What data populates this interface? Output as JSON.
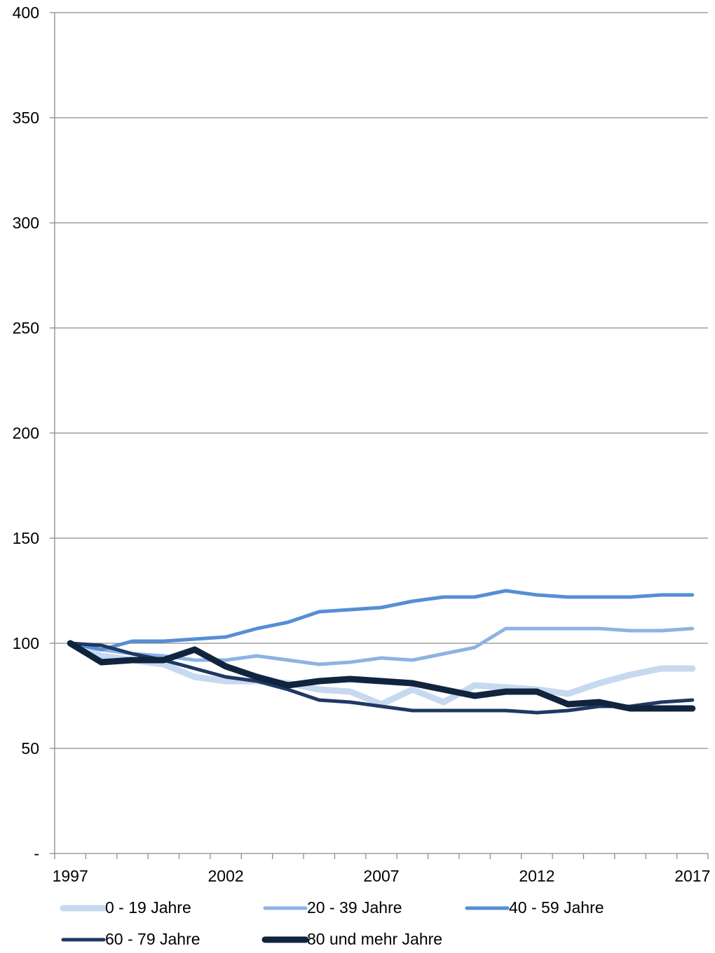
{
  "chart_data": {
    "type": "line",
    "title": "",
    "xlabel": "",
    "ylabel": "",
    "x": [
      1997,
      1998,
      1999,
      2000,
      2001,
      2002,
      2003,
      2004,
      2005,
      2006,
      2007,
      2008,
      2009,
      2010,
      2011,
      2012,
      2013,
      2014,
      2015,
      2016,
      2017
    ],
    "xticks": [
      "1997",
      "2002",
      "2007",
      "2012",
      "2017"
    ],
    "xlim": [
      1996.5,
      2017.5
    ],
    "ylim": [
      0,
      400
    ],
    "yticks": [
      "-",
      "50",
      "100",
      "150",
      "200",
      "250",
      "300",
      "350",
      "400"
    ],
    "grid": true,
    "legend_position": "bottom",
    "series": [
      {
        "name": "0 - 19 Jahre",
        "color": "#c6d9f0",
        "values": [
          100,
          94,
          92,
          90,
          84,
          82,
          82,
          81,
          78,
          77,
          71,
          78,
          72,
          80,
          79,
          78,
          76,
          81,
          85,
          88,
          88
        ]
      },
      {
        "name": "20 - 39 Jahre",
        "color": "#8db3e2",
        "values": [
          100,
          97,
          95,
          94,
          92,
          92,
          94,
          92,
          90,
          91,
          93,
          92,
          95,
          98,
          107,
          107,
          107,
          107,
          106,
          106,
          107
        ]
      },
      {
        "name": "40 - 59 Jahre",
        "color": "#558ed5",
        "values": [
          100,
          97,
          101,
          101,
          102,
          103,
          107,
          110,
          115,
          116,
          117,
          120,
          122,
          122,
          125,
          123,
          122,
          122,
          122,
          123,
          123
        ]
      },
      {
        "name": "60 - 79 Jahre",
        "color": "#1f3864",
        "values": [
          100,
          99,
          95,
          92,
          88,
          84,
          82,
          78,
          73,
          72,
          70,
          68,
          68,
          68,
          68,
          67,
          68,
          70,
          70,
          72,
          73
        ]
      },
      {
        "name": "80 und mehr Jahre",
        "color": "#10243e",
        "values": [
          100,
          91,
          92,
          92,
          97,
          89,
          84,
          80,
          82,
          83,
          82,
          81,
          78,
          75,
          77,
          77,
          71,
          72,
          69,
          69,
          69
        ]
      }
    ]
  }
}
